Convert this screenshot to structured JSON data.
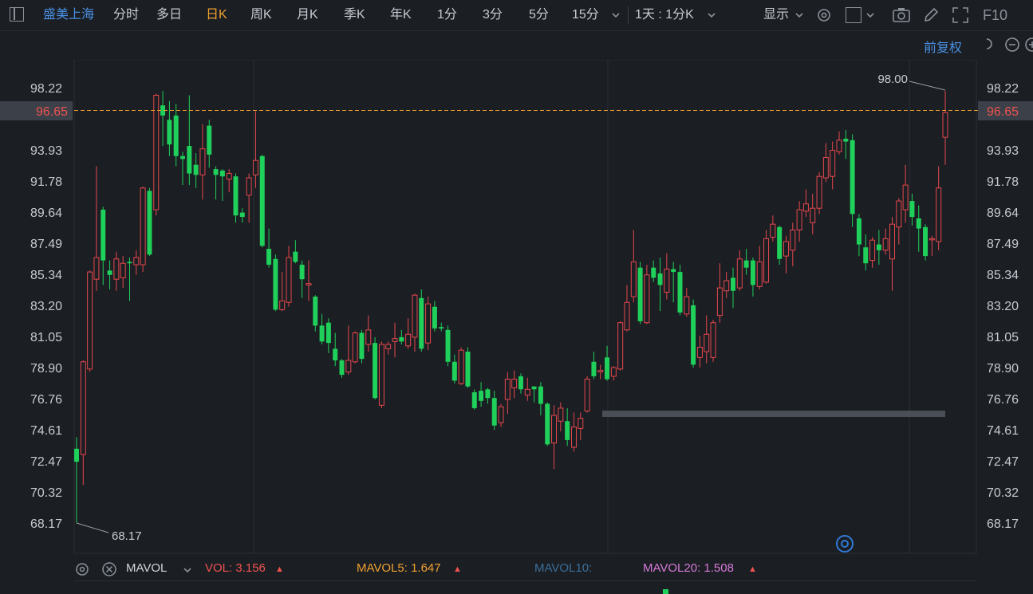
{
  "toolbar": {
    "stock_name": "盛美上海",
    "periods": [
      "分时",
      "多日",
      "日K",
      "周K",
      "月K",
      "季K",
      "年K",
      "1分",
      "3分",
      "5分",
      "15分"
    ],
    "active_period": "日K",
    "range": "1天 : 1分K",
    "display": "显示",
    "f10": "F10"
  },
  "adjust_label": "前复权",
  "price_axis": {
    "ticks": [
      "98.22",
      "96.65",
      "93.93",
      "91.78",
      "89.64",
      "87.49",
      "85.34",
      "83.20",
      "81.05",
      "78.90",
      "76.76",
      "74.61",
      "72.47",
      "70.32",
      "68.17"
    ],
    "current_price": "96.65",
    "high_label": "98.00",
    "low_label": "68.17"
  },
  "colors": {
    "up": "#e5484d",
    "down": "#1fd05a",
    "bg": "#1b1e23",
    "grid": "#2b2f36",
    "current_line": "#f0a030"
  },
  "chart_data": {
    "type": "candlestick",
    "ylim": [
      67.5,
      99.2
    ],
    "high": 98.0,
    "low": 68.17,
    "current": 96.65,
    "candles": [
      [
        73.3,
        72.4,
        74.1,
        68.2
      ],
      [
        72.9,
        79.3,
        79.4,
        70.8
      ],
      [
        78.8,
        85.5,
        85.6,
        78.6
      ],
      [
        85.0,
        86.5,
        92.8,
        84.2
      ],
      [
        89.8,
        86.3,
        90.0,
        84.6
      ],
      [
        85.6,
        85.3,
        86.3,
        84.3
      ],
      [
        85.0,
        86.4,
        86.9,
        84.2
      ],
      [
        85.1,
        86.1,
        86.6,
        84.4
      ],
      [
        86.2,
        86.1,
        86.5,
        83.5
      ],
      [
        86.0,
        86.5,
        87.0,
        85.3
      ],
      [
        86.0,
        91.3,
        91.4,
        85.5
      ],
      [
        91.1,
        86.7,
        91.3,
        86.6
      ],
      [
        89.8,
        97.7,
        97.8,
        89.4
      ],
      [
        97.0,
        96.3,
        98.0,
        94.2
      ],
      [
        96.0,
        94.3,
        97.3,
        93.5
      ],
      [
        96.3,
        93.5,
        97.1,
        92.8
      ],
      [
        93.5,
        93.3,
        93.8,
        91.5
      ],
      [
        94.2,
        92.3,
        97.7,
        91.5
      ],
      [
        92.9,
        92.2,
        93.7,
        91.3
      ],
      [
        92.2,
        94.0,
        95.7,
        90.5
      ],
      [
        95.6,
        93.6,
        96.0,
        92.7
      ],
      [
        92.6,
        92.2,
        92.8,
        90.5
      ],
      [
        92.5,
        92.1,
        92.6,
        90.4
      ],
      [
        91.9,
        92.3,
        92.6,
        91.0
      ],
      [
        92.1,
        89.4,
        92.3,
        88.9
      ],
      [
        89.6,
        89.3,
        89.9,
        88.9
      ],
      [
        90.8,
        92.0,
        92.3,
        88.9
      ],
      [
        92.2,
        93.2,
        96.6,
        91.3
      ],
      [
        93.5,
        87.3,
        93.6,
        87.2
      ],
      [
        87.1,
        86.0,
        88.5,
        85.8
      ],
      [
        86.4,
        82.9,
        86.7,
        82.8
      ],
      [
        82.9,
        83.5,
        85.5,
        82.8
      ],
      [
        83.4,
        86.5,
        87.3,
        83.1
      ],
      [
        86.9,
        86.2,
        87.7,
        86.1
      ],
      [
        86.0,
        85.0,
        86.3,
        83.7
      ],
      [
        84.6,
        84.7,
        86.3,
        83.5
      ],
      [
        83.8,
        81.8,
        83.9,
        81.4
      ],
      [
        81.8,
        80.7,
        82.6,
        80.5
      ],
      [
        82.0,
        80.6,
        82.3,
        79.9
      ],
      [
        80.2,
        79.4,
        81.3,
        79.0
      ],
      [
        79.4,
        78.4,
        79.5,
        78.2
      ],
      [
        78.6,
        79.4,
        81.8,
        78.4
      ],
      [
        79.3,
        81.3,
        81.4,
        79.2
      ],
      [
        81.3,
        79.5,
        81.5,
        79.2
      ],
      [
        80.5,
        81.5,
        82.5,
        80.0
      ],
      [
        80.6,
        76.8,
        81.0,
        76.7
      ],
      [
        76.3,
        80.5,
        80.7,
        76.1
      ],
      [
        80.2,
        80.5,
        80.7,
        79.8
      ],
      [
        80.7,
        80.9,
        82.0,
        79.6
      ],
      [
        81.0,
        80.7,
        81.5,
        80.5
      ],
      [
        80.4,
        81.2,
        82.3,
        80.2
      ],
      [
        81.0,
        83.9,
        84.0,
        80.0
      ],
      [
        83.7,
        80.2,
        84.3,
        80.0
      ],
      [
        80.6,
        83.3,
        83.8,
        80.1
      ],
      [
        83.1,
        81.6,
        83.5,
        81.4
      ],
      [
        81.7,
        81.6,
        82.0,
        81.4
      ],
      [
        81.5,
        79.3,
        81.8,
        79.0
      ],
      [
        79.3,
        78.0,
        79.8,
        77.8
      ],
      [
        77.8,
        80.1,
        80.3,
        77.7
      ],
      [
        80.0,
        77.6,
        80.3,
        77.5
      ],
      [
        77.2,
        76.1,
        77.4,
        76.0
      ],
      [
        77.3,
        76.6,
        77.9,
        76.2
      ],
      [
        77.4,
        76.8,
        77.5,
        76.4
      ],
      [
        76.8,
        74.9,
        77.3,
        74.6
      ],
      [
        75.1,
        76.2,
        76.4,
        74.8
      ],
      [
        76.7,
        78.1,
        78.6,
        75.7
      ],
      [
        77.5,
        78.1,
        78.7,
        76.8
      ],
      [
        78.3,
        77.4,
        78.5,
        77.1
      ],
      [
        77.0,
        77.4,
        78.2,
        76.6
      ],
      [
        77.6,
        77.4,
        77.6,
        76.5
      ],
      [
        77.6,
        76.4,
        77.9,
        75.6
      ],
      [
        76.4,
        73.6,
        76.5,
        73.5
      ],
      [
        73.7,
        75.6,
        76.3,
        71.9
      ],
      [
        75.2,
        76.1,
        76.5,
        74.5
      ],
      [
        75.2,
        73.9,
        76.1,
        73.5
      ],
      [
        73.4,
        74.8,
        75.8,
        73.1
      ],
      [
        74.7,
        75.4,
        75.8,
        73.9
      ],
      [
        75.9,
        78.1,
        78.3,
        75.8
      ],
      [
        79.3,
        78.3,
        80.0,
        78.1
      ],
      [
        78.6,
        78.7,
        79.1,
        78.1
      ],
      [
        79.6,
        78.1,
        80.4,
        78.0
      ],
      [
        78.3,
        78.9,
        79.0,
        78.0
      ],
      [
        78.8,
        82.0,
        82.1,
        78.7
      ],
      [
        81.5,
        83.4,
        84.6,
        81.4
      ],
      [
        83.8,
        86.2,
        88.4,
        83.4
      ],
      [
        85.8,
        82.1,
        86.2,
        81.9
      ],
      [
        82.0,
        85.3,
        86.0,
        81.9
      ],
      [
        85.8,
        85.1,
        86.3,
        84.8
      ],
      [
        85.4,
        84.6,
        86.5,
        82.8
      ],
      [
        84.1,
        85.7,
        86.8,
        83.6
      ],
      [
        85.7,
        85.5,
        86.2,
        83.4
      ],
      [
        85.5,
        82.7,
        86.0,
        82.5
      ],
      [
        82.6,
        83.8,
        84.4,
        82.4
      ],
      [
        83.2,
        79.1,
        83.6,
        78.9
      ],
      [
        79.6,
        80.3,
        81.1,
        78.9
      ],
      [
        80.0,
        81.2,
        82.5,
        79.2
      ],
      [
        79.6,
        82.0,
        82.2,
        79.3
      ],
      [
        82.5,
        84.4,
        86.1,
        82.0
      ],
      [
        84.2,
        84.9,
        85.5,
        83.7
      ],
      [
        85.1,
        84.2,
        85.8,
        83.0
      ],
      [
        84.4,
        86.4,
        87.0,
        84.2
      ],
      [
        86.3,
        85.8,
        87.1,
        85.3
      ],
      [
        86.3,
        84.6,
        86.5,
        83.8
      ],
      [
        84.5,
        86.2,
        87.3,
        84.3
      ],
      [
        84.8,
        87.8,
        88.4,
        84.7
      ],
      [
        87.9,
        88.8,
        89.4,
        87.6
      ],
      [
        88.6,
        86.4,
        88.7,
        86.0
      ],
      [
        86.6,
        87.6,
        88.0,
        85.4
      ],
      [
        87.0,
        88.4,
        88.9,
        85.9
      ],
      [
        88.4,
        89.8,
        90.4,
        87.6
      ],
      [
        89.7,
        90.2,
        91.2,
        89.3
      ],
      [
        88.9,
        89.9,
        90.9,
        88.1
      ],
      [
        89.9,
        92.1,
        92.4,
        89.5
      ],
      [
        92.0,
        93.4,
        94.4,
        91.7
      ],
      [
        92.1,
        93.9,
        94.5,
        91.2
      ],
      [
        93.8,
        94.6,
        95.2,
        93.6
      ],
      [
        94.7,
        94.5,
        95.3,
        93.3
      ],
      [
        94.6,
        89.5,
        95.0,
        88.6
      ],
      [
        89.2,
        87.4,
        89.5,
        86.6
      ],
      [
        87.2,
        86.1,
        88.1,
        85.6
      ],
      [
        86.3,
        87.7,
        87.9,
        85.8
      ],
      [
        87.4,
        87.0,
        88.4,
        86.0
      ],
      [
        87.0,
        87.8,
        88.5,
        86.7
      ],
      [
        86.4,
        88.8,
        89.3,
        84.2
      ],
      [
        88.6,
        90.4,
        90.6,
        87.4
      ],
      [
        89.8,
        91.5,
        92.9,
        88.9
      ],
      [
        90.4,
        89.3,
        90.9,
        88.7
      ],
      [
        89.2,
        88.5,
        90.1,
        86.9
      ],
      [
        88.6,
        86.6,
        88.8,
        86.3
      ],
      [
        87.8,
        87.8,
        88.0,
        86.6
      ],
      [
        87.6,
        91.3,
        92.8,
        87.0
      ],
      [
        94.8,
        96.5,
        98.0,
        92.9
      ]
    ]
  },
  "volume_bar": {
    "indicator": "MAVOL",
    "vol": "VOL: 3.156",
    "mavol5": "MAVOL5: 1.647",
    "mavol10": "MAVOL10:",
    "mavol20": "MAVOL20: 1.508"
  }
}
